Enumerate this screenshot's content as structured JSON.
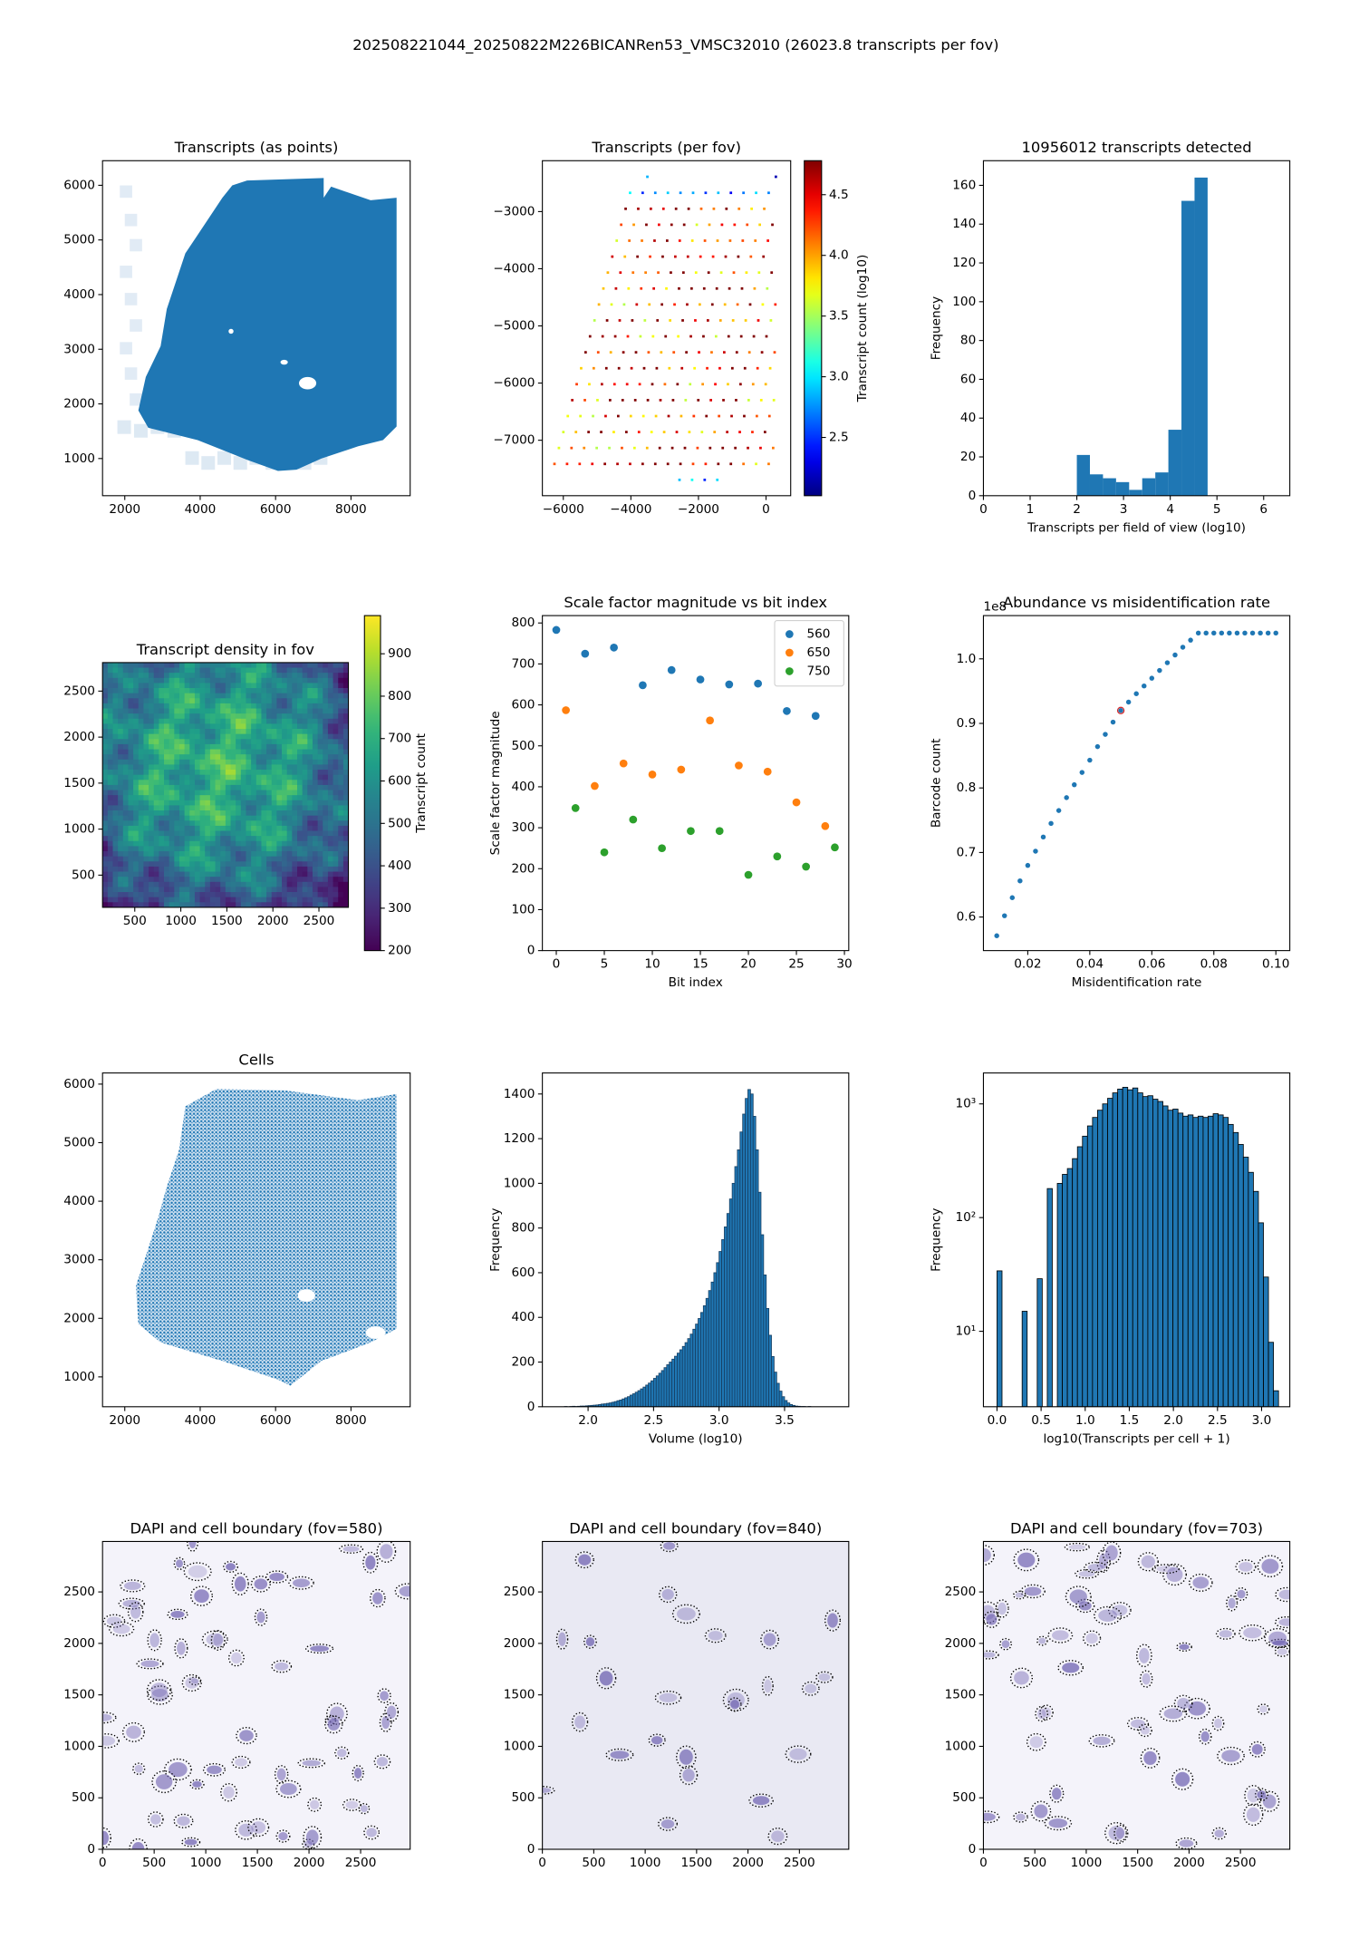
{
  "title": "202508221044_20250822M226BICANRen53_VMSC32010 (26023.8 transcripts per fov)",
  "chart_data": [
    {
      "type": "image",
      "title": "Transcripts (as points)",
      "xlim": [
        1410,
        9570
      ],
      "ylim": [
        320,
        6450
      ],
      "xticks": [
        2000,
        4000,
        6000,
        8000
      ],
      "yticks": [
        1000,
        2000,
        3000,
        4000,
        5000,
        6000
      ]
    },
    {
      "type": "scatter",
      "title": "Transcripts (per fov)",
      "xlim": [
        -6620,
        730
      ],
      "ylim": [
        -7970,
        -2110
      ],
      "xticks": [
        {
          "value": -6000,
          "label": "−6000"
        },
        {
          "value": -4000,
          "label": "−4000"
        },
        {
          "value": -2000,
          "label": "−2000"
        },
        0
      ],
      "yticks": [
        {
          "value": -7000,
          "label": "−7000"
        },
        {
          "value": -6000,
          "label": "−6000"
        },
        {
          "value": -5000,
          "label": "−5000"
        },
        {
          "value": -4000,
          "label": "−4000"
        },
        {
          "value": -3000,
          "label": "−3000"
        }
      ],
      "colorbar": {
        "label": "Transcript count (log10)",
        "cmap": "jet",
        "lim": [
          2.02,
          4.78
        ],
        "ticks": [
          2.5,
          {
            "value": 3,
            "label": "3.0"
          },
          3.5,
          {
            "value": 4,
            "label": "4.0"
          },
          4.5
        ]
      }
    },
    {
      "type": "histogram",
      "title": "10956012 transcripts detected",
      "xlabel": "Transcripts per field of view (log10)",
      "ylabel": "Frequency",
      "color": "#1f77b4",
      "bins": [
        2.0,
        2.28,
        2.56,
        2.84,
        3.12,
        3.4,
        3.68,
        3.96,
        4.24,
        4.52,
        4.8
      ],
      "values": [
        21,
        11,
        9,
        7,
        3,
        9,
        12,
        34,
        152,
        164
      ],
      "xlim": [
        0,
        6.56
      ],
      "ylim": [
        0,
        172.7
      ],
      "xticks": [
        0,
        1,
        2,
        3,
        4,
        5,
        6
      ],
      "yticks": [
        0,
        20,
        40,
        60,
        80,
        100,
        120,
        140,
        160
      ]
    },
    {
      "type": "heatmap",
      "title": "Transcript density in fov",
      "xlim": [
        150,
        2820
      ],
      "ylim": [
        150,
        2810
      ],
      "xticks": [
        500,
        1000,
        1500,
        2000,
        2500
      ],
      "yticks": [
        500,
        1000,
        1500,
        2000,
        2500
      ],
      "colorbar": {
        "label": "Transcript count",
        "cmap": "viridis",
        "lim": [
          200,
          990
        ],
        "ticks": [
          200,
          300,
          400,
          500,
          600,
          700,
          800,
          900
        ]
      }
    },
    {
      "type": "scatter",
      "title": "Scale factor magnitude vs bit index",
      "xlabel": "Bit index",
      "ylabel": "Scale factor magnitude",
      "legend": "upper right",
      "xlim": [
        -1.45,
        30.45
      ],
      "ylim": [
        0,
        818
      ],
      "xticks": [
        0,
        5,
        10,
        15,
        20,
        25,
        30
      ],
      "yticks": [
        0,
        100,
        200,
        300,
        400,
        500,
        600,
        700,
        800
      ],
      "series": [
        {
          "name": "560",
          "color": "#1f77b4",
          "x": [
            0,
            3,
            6,
            9,
            12,
            15,
            18,
            21,
            24,
            27
          ],
          "values": [
            783,
            725,
            740,
            648,
            685,
            662,
            650,
            652,
            585,
            573
          ]
        },
        {
          "name": "650",
          "color": "#ff7f0e",
          "x": [
            1,
            4,
            7,
            10,
            13,
            16,
            19,
            22,
            25,
            28
          ],
          "values": [
            587,
            402,
            457,
            430,
            442,
            562,
            452,
            437,
            362,
            304
          ]
        },
        {
          "name": "750",
          "color": "#2ca02c",
          "x": [
            2,
            5,
            8,
            11,
            14,
            17,
            20,
            23,
            26,
            29
          ],
          "values": [
            348,
            240,
            320,
            250,
            292,
            292,
            185,
            230,
            205,
            252
          ]
        }
      ]
    },
    {
      "type": "scatter",
      "title": "Abundance vs misidentification rate",
      "xlabel": "Misidentification rate",
      "ylabel": "Barcode count",
      "offset_text": "1e8",
      "xlim": [
        0.0057,
        0.1045
      ],
      "ylim": [
        0.548,
        1.067
      ],
      "xticks": [
        0.02,
        0.04,
        0.06,
        0.08,
        {
          "value": 0.1,
          "label": "0.10"
        }
      ],
      "yticks": [
        0.6,
        0.7,
        0.8,
        0.9,
        {
          "value": 1,
          "label": "1.0"
        }
      ],
      "highlight_index": 16,
      "highlight_color": "#d62728",
      "series": [
        {
          "color": "#1f77b4",
          "x": [
            0.01,
            0.0125,
            0.015,
            0.0175,
            0.02,
            0.0225,
            0.025,
            0.0275,
            0.03,
            0.0325,
            0.035,
            0.0375,
            0.04,
            0.0425,
            0.045,
            0.0475,
            0.05,
            0.0525,
            0.055,
            0.0575,
            0.06,
            0.0625,
            0.065,
            0.0675,
            0.07,
            0.0725,
            0.075,
            0.0775,
            0.08,
            0.0825,
            0.085,
            0.0875,
            0.09,
            0.0925,
            0.095,
            0.0975,
            0.1
          ],
          "values": [
            0.571,
            0.602,
            0.63,
            0.656,
            0.68,
            0.702,
            0.724,
            0.745,
            0.765,
            0.785,
            0.805,
            0.824,
            0.843,
            0.864,
            0.883,
            0.902,
            0.92,
            0.933,
            0.946,
            0.958,
            0.97,
            0.982,
            0.994,
            1.006,
            1.018,
            1.029,
            1.04,
            1.04,
            1.04,
            1.04,
            1.04,
            1.04,
            1.04,
            1.04,
            1.04,
            1.04,
            1.04
          ]
        }
      ]
    },
    {
      "type": "image",
      "title": "Cells",
      "xlim": [
        1410,
        9570
      ],
      "ylim": [
        490,
        6190
      ],
      "xticks": [
        2000,
        4000,
        6000,
        8000
      ],
      "yticks": [
        1000,
        2000,
        3000,
        4000,
        5000,
        6000
      ]
    },
    {
      "type": "histogram",
      "xlabel": "Volume (log10)",
      "ylabel": "Frequency",
      "color": "#1f77b4",
      "edgecolor": "#163f63",
      "bins": [
        1.8,
        1.82,
        1.84,
        1.86,
        1.88,
        1.9,
        1.92,
        1.94,
        1.96,
        1.98,
        2.0,
        2.02,
        2.04,
        2.06,
        2.08,
        2.1,
        2.12,
        2.14,
        2.16,
        2.18,
        2.2,
        2.22,
        2.24,
        2.26,
        2.28,
        2.3,
        2.32,
        2.34,
        2.36,
        2.38,
        2.4,
        2.42,
        2.44,
        2.46,
        2.48,
        2.5,
        2.52,
        2.54,
        2.56,
        2.58,
        2.6,
        2.62,
        2.64,
        2.66,
        2.68,
        2.7,
        2.72,
        2.74,
        2.76,
        2.78,
        2.8,
        2.82,
        2.84,
        2.86,
        2.88,
        2.9,
        2.92,
        2.94,
        2.96,
        2.98,
        3.0,
        3.02,
        3.04,
        3.06,
        3.08,
        3.1,
        3.12,
        3.14,
        3.16,
        3.18,
        3.2,
        3.22,
        3.24,
        3.26,
        3.28,
        3.3,
        3.32,
        3.34,
        3.36,
        3.38,
        3.4,
        3.42,
        3.44,
        3.46,
        3.48,
        3.5,
        3.52,
        3.54,
        3.56,
        3.58,
        3.6,
        3.62,
        3.64,
        3.66,
        3.68,
        3.7
      ],
      "values": [
        0,
        1,
        0,
        1,
        2,
        1,
        2,
        3,
        3,
        4,
        5,
        6,
        7,
        8,
        10,
        12,
        13,
        15,
        17,
        20,
        23,
        27,
        30,
        35,
        40,
        45,
        52,
        58,
        65,
        72,
        80,
        88,
        97,
        106,
        116,
        127,
        138,
        150,
        162,
        175,
        188,
        200,
        213,
        226,
        240,
        255,
        270,
        287,
        305,
        325,
        347,
        370,
        395,
        422,
        452,
        485,
        520,
        558,
        600,
        645,
        695,
        748,
        805,
        865,
        930,
        1000,
        1075,
        1150,
        1230,
        1310,
        1380,
        1420,
        1400,
        1300,
        1150,
        960,
        770,
        590,
        440,
        320,
        225,
        155,
        105,
        70,
        45,
        28,
        17,
        10,
        6,
        3,
        2,
        1,
        1,
        0,
        1
      ],
      "xlim": [
        1.651,
        3.99
      ],
      "ylim": [
        0,
        1494
      ],
      "xticks": [
        {
          "value": 2,
          "label": "2.0"
        },
        2.5,
        {
          "value": 3,
          "label": "3.0"
        },
        3.5
      ],
      "yticks": [
        0,
        200,
        400,
        600,
        800,
        1000,
        1200,
        1400
      ]
    },
    {
      "type": "histogram",
      "xlabel": "log10(Transcripts per cell + 1)",
      "ylabel": "Frequency",
      "color": "#1f77b4",
      "edgecolor": "#000000",
      "yscale": "log",
      "bins": [
        0,
        0.057,
        0.114,
        0.171,
        0.228,
        0.285,
        0.342,
        0.399,
        0.456,
        0.513,
        0.57,
        0.627,
        0.684,
        0.741,
        0.798,
        0.855,
        0.912,
        0.969,
        1.026,
        1.083,
        1.14,
        1.197,
        1.254,
        1.311,
        1.368,
        1.425,
        1.482,
        1.539,
        1.596,
        1.653,
        1.71,
        1.767,
        1.824,
        1.881,
        1.938,
        1.995,
        2.052,
        2.109,
        2.166,
        2.223,
        2.28,
        2.337,
        2.394,
        2.451,
        2.508,
        2.565,
        2.622,
        2.679,
        2.736,
        2.793,
        2.85,
        2.907,
        2.964,
        3.021,
        3.078,
        3.135,
        3.192
      ],
      "values": [
        34,
        0,
        0,
        0,
        0,
        15,
        0,
        0,
        29,
        0,
        180,
        0,
        200,
        240,
        270,
        330,
        420,
        520,
        640,
        760,
        880,
        1000,
        1120,
        1250,
        1350,
        1400,
        1330,
        1380,
        1250,
        1160,
        1180,
        1100,
        1050,
        960,
        880,
        900,
        830,
        780,
        800,
        760,
        780,
        760,
        780,
        820,
        800,
        760,
        660,
        560,
        440,
        340,
        250,
        170,
        90,
        30,
        8,
        3
      ],
      "xlim": [
        -0.154,
        3.32
      ],
      "ylim": [
        2.17,
        1870
      ],
      "xticks": [
        {
          "value": 0,
          "label": "0.0"
        },
        0.5,
        {
          "value": 1,
          "label": "1.0"
        },
        1.5,
        {
          "value": 2,
          "label": "2.0"
        },
        2.5,
        {
          "value": 3,
          "label": "3.0"
        }
      ],
      "yticks": [
        {
          "value": 10,
          "label": "10¹"
        },
        {
          "value": 100,
          "label": "10²"
        },
        {
          "value": 1000,
          "label": "10³"
        }
      ]
    },
    {
      "type": "image",
      "title": "DAPI and cell boundary (fov=580)",
      "xlim": [
        0,
        2980
      ],
      "ylim": [
        0,
        2990
      ],
      "xticks": [
        0,
        500,
        1000,
        1500,
        2000,
        2500
      ],
      "yticks": [
        0,
        500,
        1000,
        1500,
        2000,
        2500
      ]
    },
    {
      "type": "image",
      "title": "DAPI and cell boundary (fov=840)",
      "xlim": [
        0,
        2980
      ],
      "ylim": [
        0,
        2990
      ],
      "xticks": [
        0,
        500,
        1000,
        1500,
        2000,
        2500
      ],
      "yticks": [
        0,
        500,
        1000,
        1500,
        2000,
        2500
      ]
    },
    {
      "type": "image",
      "title": "DAPI and cell boundary (fov=703)",
      "xlim": [
        0,
        2980
      ],
      "ylim": [
        0,
        2990
      ],
      "xticks": [
        0,
        500,
        1000,
        1500,
        2000,
        2500
      ],
      "yticks": [
        0,
        500,
        1000,
        1500,
        2000,
        2500
      ]
    }
  ]
}
